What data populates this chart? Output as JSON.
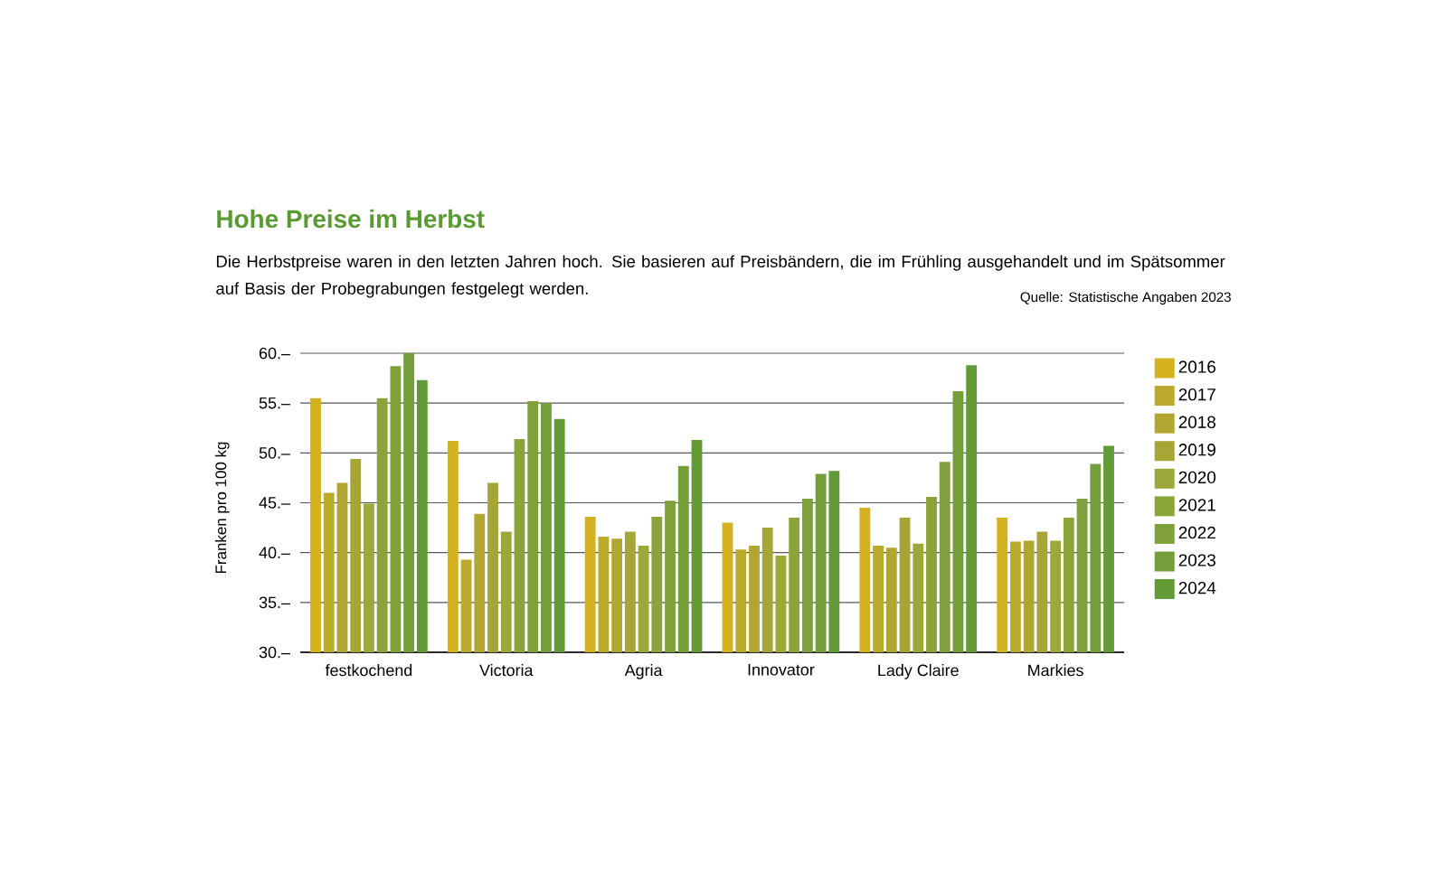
{
  "chart_data": {
    "type": "bar",
    "title": "Hohe Preise im Herbst",
    "subtitle": "Die Herbstpreise waren in den letzten Jahren hoch. Sie basieren auf Preisbändern, die im Frühling ausgehandelt und im Spätsommer auf Basis der Probegrabungen festgelegt werden.",
    "annotations": [
      "Quelle: Statistische Angaben 2023"
    ],
    "ylabel": "Franken pro 100 kg",
    "categories": [
      "festkochend",
      "Victoria",
      "Agria",
      "Innovator",
      "Lady Claire",
      "Markies"
    ],
    "series": [
      {
        "name": "2016",
        "color": "#d4b11f",
        "values": [
          55.5,
          51.2,
          43.6,
          43.0,
          44.5,
          43.5
        ]
      },
      {
        "name": "2017",
        "color": "#bcaa2d",
        "values": [
          46.0,
          39.3,
          41.6,
          40.3,
          40.7,
          41.1
        ]
      },
      {
        "name": "2018",
        "color": "#b0a630",
        "values": [
          47.0,
          43.9,
          41.4,
          40.7,
          40.5,
          41.2
        ]
      },
      {
        "name": "2019",
        "color": "#a5a636",
        "values": [
          49.4,
          47.0,
          42.1,
          42.5,
          43.5,
          42.1
        ]
      },
      {
        "name": "2020",
        "color": "#9ca83a",
        "values": [
          44.9,
          42.1,
          40.7,
          39.7,
          40.9,
          41.2
        ]
      },
      {
        "name": "2021",
        "color": "#8aa43a",
        "values": [
          55.5,
          51.4,
          43.6,
          43.5,
          45.6,
          43.5
        ]
      },
      {
        "name": "2022",
        "color": "#80a03b",
        "values": [
          58.7,
          55.2,
          45.2,
          45.4,
          49.1,
          45.4
        ]
      },
      {
        "name": "2023",
        "color": "#749e3a",
        "values": [
          60.0,
          55.0,
          48.7,
          47.9,
          56.2,
          48.9
        ]
      },
      {
        "name": "2024",
        "color": "#629a36",
        "values": [
          57.3,
          53.4,
          51.3,
          48.2,
          58.8,
          50.7
        ]
      }
    ],
    "ylim": [
      30,
      60
    ],
    "yticks": [
      {
        "value": 30,
        "label": "30.–"
      },
      {
        "value": 35,
        "label": "35.–"
      },
      {
        "value": 40,
        "label": "40.–"
      },
      {
        "value": 45,
        "label": "45.–"
      },
      {
        "value": 50,
        "label": "50.–"
      },
      {
        "value": 55,
        "label": "55.–"
      },
      {
        "value": 60,
        "label": "60.–"
      }
    ],
    "grid": "y",
    "legend": "right"
  }
}
